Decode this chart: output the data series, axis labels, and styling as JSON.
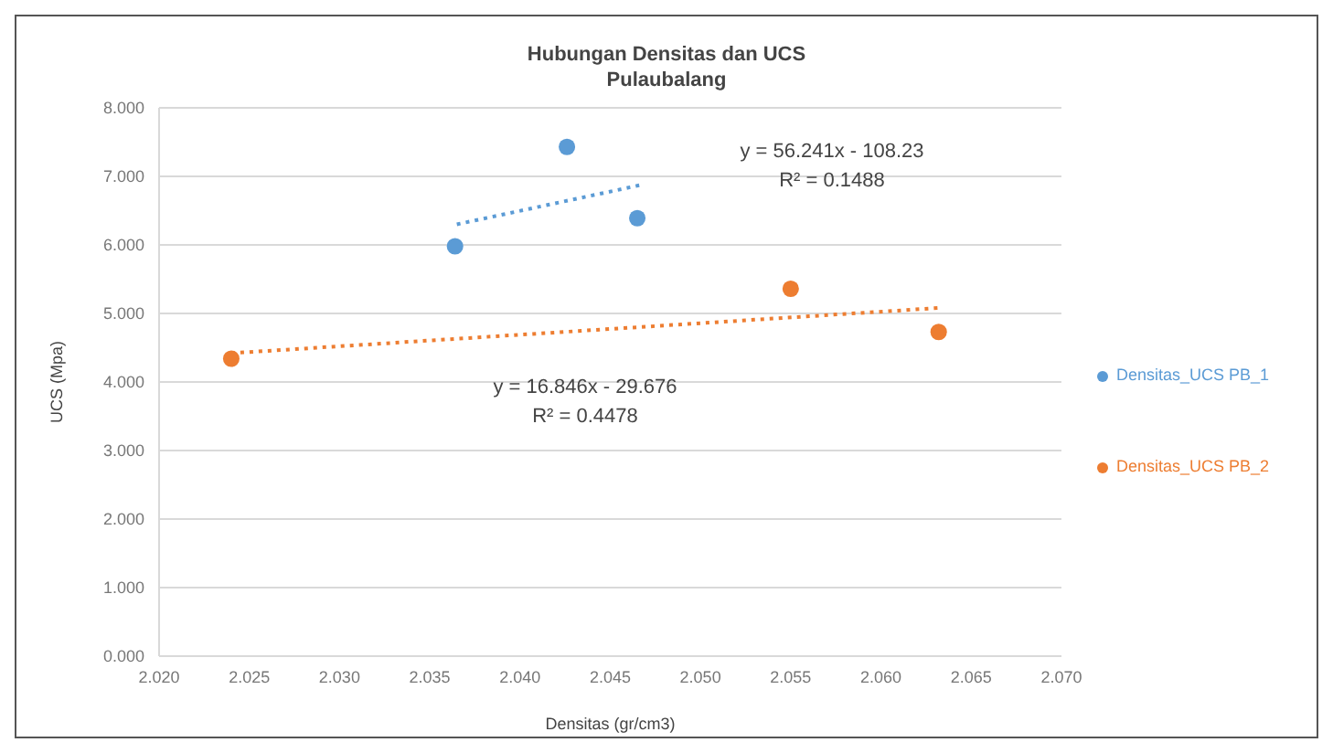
{
  "chart_data": {
    "type": "scatter",
    "title": "Hubungan Densitas dan UCS",
    "subtitle": "Pulaubalang",
    "xlabel": "Densitas (gr/cm3)",
    "ylabel": "UCS (Mpa)",
    "xlim": [
      2.02,
      2.07
    ],
    "xticks": [
      {
        "value": 2.02,
        "label": "2.020"
      },
      {
        "value": 2.025,
        "label": "2.025"
      },
      {
        "value": 2.03,
        "label": "2.030"
      },
      {
        "value": 2.035,
        "label": "2.035"
      },
      {
        "value": 2.04,
        "label": "2.040"
      },
      {
        "value": 2.045,
        "label": "2.045"
      },
      {
        "value": 2.05,
        "label": "2.050"
      },
      {
        "value": 2.055,
        "label": "2.055"
      },
      {
        "value": 2.06,
        "label": "2.060"
      },
      {
        "value": 2.065,
        "label": "2.065"
      },
      {
        "value": 2.07,
        "label": "2.070"
      }
    ],
    "ylim": [
      0,
      8
    ],
    "yticks": [
      {
        "value": 0,
        "label": "0.000"
      },
      {
        "value": 1,
        "label": "1.000"
      },
      {
        "value": 2,
        "label": "2.000"
      },
      {
        "value": 3,
        "label": "3.000"
      },
      {
        "value": 4,
        "label": "4.000"
      },
      {
        "value": 5,
        "label": "5.000"
      },
      {
        "value": 6,
        "label": "6.000"
      },
      {
        "value": 7,
        "label": "7.000"
      },
      {
        "value": 8,
        "label": "8.000"
      }
    ],
    "grid": "y",
    "legend": "right",
    "series": [
      {
        "name": "Densitas_UCS PB_1",
        "color": "#5b9bd5",
        "marker": "circle",
        "x": [
          2.0364,
          2.0426,
          2.0465
        ],
        "values": [
          5.98,
          7.43,
          6.39
        ]
      },
      {
        "name": "Densitas_UCS PB_2",
        "color": "#ed7d31",
        "marker": "circle",
        "x": [
          2.024,
          2.055,
          2.0632
        ],
        "values": [
          4.34,
          5.36,
          4.73
        ]
      },
      {
        "type": "line",
        "color": "#5b9bd5",
        "line_style": "dotted",
        "x": [
          2.0365,
          2.0468
        ],
        "values": [
          6.3,
          6.88
        ]
      },
      {
        "type": "line",
        "color": "#ed7d31",
        "line_style": "dotted",
        "x": [
          2.024,
          2.0632
        ],
        "values": [
          4.42,
          5.08
        ]
      }
    ],
    "annotations": [
      "y = 56.241x - 108.23",
      "R² = 0.1488",
      "y = 16.846x - 29.676",
      "R² = 0.4478"
    ]
  }
}
